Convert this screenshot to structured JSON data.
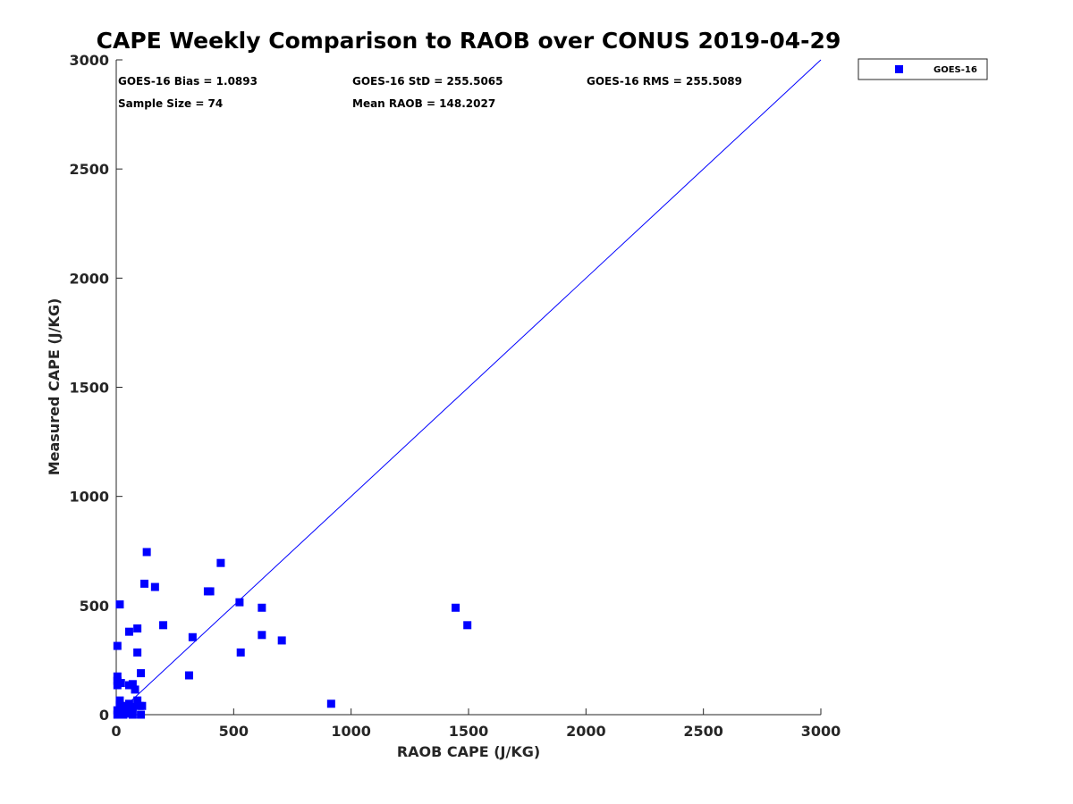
{
  "stats": {
    "bias": "GOES-16 Bias = 1.0893",
    "std": "GOES-16 StD = 255.5065",
    "rms": "GOES-16 RMS = 255.5089",
    "sample_size": "Sample Size = 74",
    "mean_raob": "Mean RAOB = 148.2027"
  },
  "colors": {
    "series": "#0000ff",
    "axis": "#262626",
    "background": "#ffffff"
  },
  "chart_data": {
    "type": "scatter",
    "title": "CAPE Weekly Comparison to RAOB over CONUS 2019-04-29",
    "xlabel": "RAOB CAPE (J/KG)",
    "ylabel": "Measured CAPE (J/KG)",
    "xlim": [
      0,
      3000
    ],
    "ylim": [
      0,
      3000
    ],
    "xticks": [
      0,
      500,
      1000,
      1500,
      2000,
      2500,
      3000
    ],
    "yticks": [
      0,
      500,
      1000,
      1500,
      2000,
      2500,
      3000
    ],
    "grid": false,
    "legend": {
      "position": "outside-top-right",
      "entries": [
        "GOES-16"
      ]
    },
    "reference_line": {
      "name": "1:1 line",
      "x": [
        0,
        3000
      ],
      "y": [
        0,
        3000
      ]
    },
    "series": [
      {
        "name": "GOES-16",
        "marker": "square",
        "x": [
          130,
          445,
          120,
          165,
          390,
          400,
          15,
          525,
          620,
          1445,
          200,
          1495,
          55,
          90,
          325,
          620,
          705,
          5,
          90,
          530,
          105,
          310,
          5,
          5,
          20,
          5,
          70,
          55,
          80,
          15,
          15,
          90,
          110,
          100,
          70,
          915,
          55,
          40,
          5,
          15,
          25,
          50,
          60,
          105,
          5,
          30,
          45,
          70
        ],
        "y": [
          745,
          695,
          600,
          585,
          565,
          565,
          505,
          515,
          490,
          490,
          410,
          410,
          380,
          395,
          355,
          365,
          340,
          315,
          285,
          285,
          190,
          180,
          175,
          155,
          145,
          135,
          140,
          135,
          115,
          65,
          45,
          65,
          40,
          40,
          35,
          50,
          50,
          40,
          20,
          25,
          10,
          10,
          10,
          0,
          0,
          0,
          5,
          0
        ]
      }
    ]
  }
}
